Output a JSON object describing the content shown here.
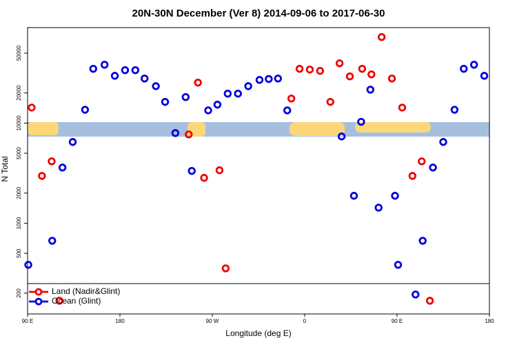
{
  "chart_data": {
    "type": "scatter",
    "title": "20N-30N December (Ver 8)   2014-09-06 to 2017-06-30",
    "xlabel": "Longitude (deg E)",
    "ylabel": "N Total",
    "xlim": [
      90,
      540
    ],
    "xticks": [
      {
        "value": 90,
        "label": "90 E"
      },
      {
        "value": 180,
        "label": "180"
      },
      {
        "value": 270,
        "label": "90 W"
      },
      {
        "value": 360,
        "label": "0"
      },
      {
        "value": 450,
        "label": "90 E"
      },
      {
        "value": 540,
        "label": "180"
      }
    ],
    "ylim": [
      124,
      90000
    ],
    "ylog": true,
    "yticks": [
      200,
      500,
      1000,
      2000,
      5000,
      10000,
      20000,
      50000
    ],
    "legend": "lower left",
    "series": [
      {
        "name": "Land (Nadir&Glint)",
        "color": "#ee0000",
        "x": [
          94,
          104,
          113.5,
          121,
          247,
          256,
          262,
          277,
          283,
          347,
          355,
          365,
          375,
          385,
          394,
          404,
          416,
          425,
          435,
          445,
          455,
          465,
          474,
          482
        ],
        "values": [
          14300,
          2970,
          4150,
          168,
          7710,
          25400,
          2840,
          3380,
          354,
          17600,
          34900,
          34300,
          33300,
          16300,
          39600,
          29300,
          34900,
          30700,
          72400,
          27900,
          14300,
          2970,
          4150,
          168
        ]
      },
      {
        "name": "Ocean (Glint)",
        "color": "#0000dd",
        "x": [
          90.7,
          114,
          124,
          134,
          146,
          154,
          165,
          175,
          185,
          195,
          204,
          215,
          224,
          234,
          244,
          250,
          266,
          275,
          285,
          295,
          305,
          316,
          325,
          334,
          343,
          396,
          408,
          415,
          424,
          432,
          448,
          451,
          468,
          475,
          485,
          495,
          506,
          515,
          525,
          535
        ],
        "values": [
          384,
          668,
          3600,
          6480,
          13600,
          34900,
          38300,
          29700,
          33800,
          33800,
          27900,
          23400,
          16300,
          7960,
          18200,
          3330,
          13400,
          15300,
          19700,
          19700,
          23400,
          27000,
          27600,
          27900,
          13400,
          7360,
          1880,
          10300,
          21600,
          1430,
          1880,
          384,
          194,
          668,
          3600,
          6480,
          13600,
          34900,
          38300,
          29700
        ]
      }
    ]
  }
}
